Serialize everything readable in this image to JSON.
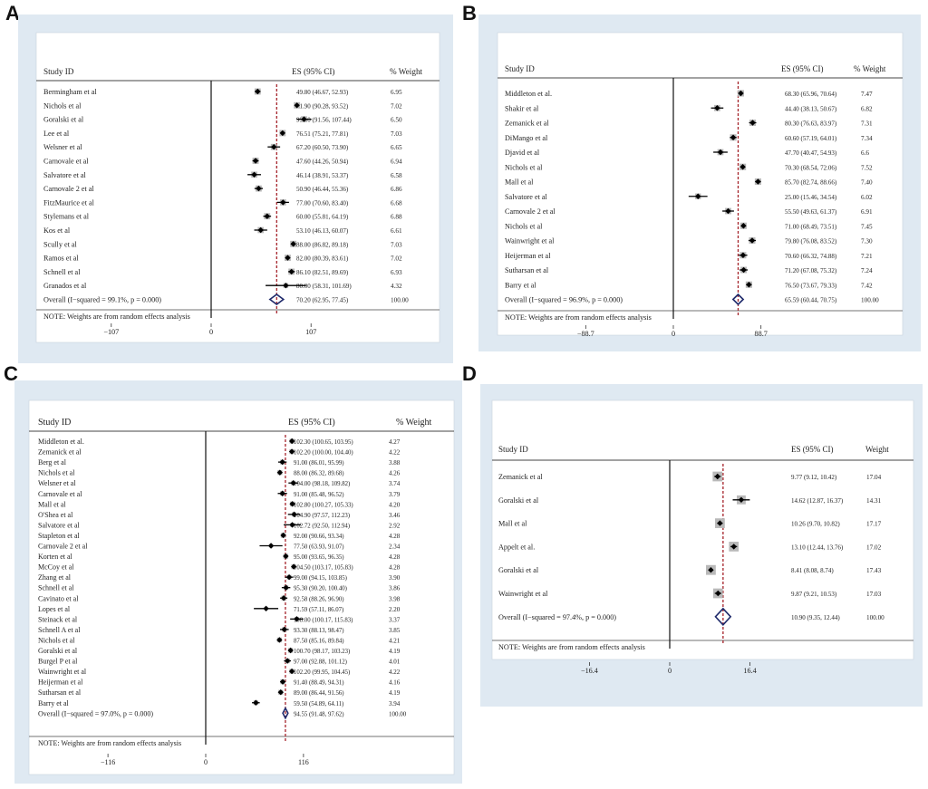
{
  "panels": [
    {
      "letter": "A"
    },
    {
      "letter": "B"
    },
    {
      "letter": "C"
    },
    {
      "letter": "D"
    }
  ],
  "chart_data": [
    {
      "type": "forest",
      "panel": "A",
      "columns": {
        "study": "Study ID",
        "es": "ES (95% CI)",
        "weight": "% Weight"
      },
      "colors": {
        "frame": "#dfe9f2",
        "plot": "#ffffff",
        "ref": "#a5232a",
        "diamond": "#1f2a6b"
      },
      "studies": [
        {
          "name": "Bermingham et al",
          "es": 49.8,
          "lo": 46.67,
          "hi": 52.93,
          "ci": "49.80 (46.67, 52.93)",
          "weight": "6.95"
        },
        {
          "name": "Nichols et al",
          "es": 91.9,
          "lo": 90.28,
          "hi": 93.52,
          "ci": "91.90 (90.28, 93.52)",
          "weight": "7.02"
        },
        {
          "name": "Goralski et al",
          "es": 99.5,
          "lo": 91.56,
          "hi": 107.44,
          "ci": "99.50 (91.56, 107.44)",
          "weight": "6.50"
        },
        {
          "name": "Lee et al",
          "es": 76.51,
          "lo": 75.21,
          "hi": 77.81,
          "ci": "76.51 (75.21, 77.81)",
          "weight": "7.03"
        },
        {
          "name": "Welsner et al",
          "es": 67.2,
          "lo": 60.5,
          "hi": 73.9,
          "ci": "67.20 (60.50, 73.90)",
          "weight": "6.65"
        },
        {
          "name": "Carnovale et al",
          "es": 47.6,
          "lo": 44.26,
          "hi": 50.94,
          "ci": "47.60 (44.26, 50.94)",
          "weight": "6.94"
        },
        {
          "name": "Salvatore et al",
          "es": 46.14,
          "lo": 38.91,
          "hi": 53.37,
          "ci": "46.14 (38.91, 53.37)",
          "weight": "6.58"
        },
        {
          "name": "Carnovale 2 et al",
          "es": 50.9,
          "lo": 46.44,
          "hi": 55.36,
          "ci": "50.90 (46.44, 55.36)",
          "weight": "6.86"
        },
        {
          "name": "FitzMaurice et al",
          "es": 77.0,
          "lo": 70.6,
          "hi": 83.4,
          "ci": "77.00 (70.60, 83.40)",
          "weight": "6.68"
        },
        {
          "name": "Stylemans et al",
          "es": 60.0,
          "lo": 55.81,
          "hi": 64.19,
          "ci": "60.00 (55.81, 64.19)",
          "weight": "6.88"
        },
        {
          "name": "Kos et al",
          "es": 53.1,
          "lo": 46.13,
          "hi": 60.07,
          "ci": "53.10 (46.13, 60.07)",
          "weight": "6.61"
        },
        {
          "name": "Scully et al",
          "es": 88.0,
          "lo": 86.82,
          "hi": 89.18,
          "ci": "88.00 (86.82, 89.18)",
          "weight": "7.03"
        },
        {
          "name": "Ramos et al",
          "es": 82.0,
          "lo": 80.39,
          "hi": 83.61,
          "ci": "82.00 (80.39, 83.61)",
          "weight": "7.02"
        },
        {
          "name": "Schnell et al",
          "es": 86.1,
          "lo": 82.51,
          "hi": 89.69,
          "ci": "86.10 (82.51, 89.69)",
          "weight": "6.93"
        },
        {
          "name": "Granados et al",
          "es": 80.0,
          "lo": 58.31,
          "hi": 101.69,
          "ci": "80.00 (58.31, 101.69)",
          "weight": "4.32"
        }
      ],
      "overall": {
        "label": "Overall  (I−squared = 99.1%, p = 0.000)",
        "es": 70.2,
        "lo": 62.95,
        "hi": 77.45,
        "ci": "70.20 (62.95, 77.45)",
        "weight": "100.00"
      },
      "note": "NOTE: Weights are from random effects analysis",
      "axis": {
        "min": -107,
        "max": 107,
        "ticks": [
          {
            "v": -107,
            "label": "−107"
          },
          {
            "v": 0,
            "label": "0"
          },
          {
            "v": 107,
            "label": "107"
          }
        ]
      }
    },
    {
      "type": "forest",
      "panel": "B",
      "columns": {
        "study": "Study ID",
        "es": "ES (95% CI)",
        "weight": "% Weight"
      },
      "colors": {
        "frame": "#dfe9f2",
        "plot": "#ffffff",
        "ref": "#a5232a",
        "diamond": "#1f2a6b"
      },
      "studies": [
        {
          "name": "Middleton et al.",
          "es": 68.3,
          "lo": 65.96,
          "hi": 70.64,
          "ci": "68.30 (65.96, 70.64)",
          "weight": "7.47"
        },
        {
          "name": "Shakir et al",
          "es": 44.4,
          "lo": 38.13,
          "hi": 50.67,
          "ci": "44.40 (38.13, 50.67)",
          "weight": "6.82"
        },
        {
          "name": "Zemanick et al",
          "es": 80.3,
          "lo": 76.63,
          "hi": 83.97,
          "ci": "80.30 (76.63, 83.97)",
          "weight": "7.31"
        },
        {
          "name": "DiMango et al",
          "es": 60.6,
          "lo": 57.19,
          "hi": 64.01,
          "ci": "60.60 (57.19, 64.01)",
          "weight": "7.34"
        },
        {
          "name": "Djavid et al",
          "es": 47.7,
          "lo": 40.47,
          "hi": 54.93,
          "ci": "47.70 (40.47, 54.93)",
          "weight": "6.6"
        },
        {
          "name": "Nichols et al",
          "es": 70.3,
          "lo": 68.54,
          "hi": 72.06,
          "ci": "70.30 (68.54, 72.06)",
          "weight": "7.52"
        },
        {
          "name": "Mall et al",
          "es": 85.7,
          "lo": 82.74,
          "hi": 88.66,
          "ci": "85.70 (82.74, 88.66)",
          "weight": "7.40"
        },
        {
          "name": "Salvatore et al",
          "es": 25.0,
          "lo": 15.46,
          "hi": 34.54,
          "ci": "25.00 (15.46, 34.54)",
          "weight": "6.02"
        },
        {
          "name": "Carnovale 2 et al",
          "es": 55.5,
          "lo": 49.63,
          "hi": 61.37,
          "ci": "55.50 (49.63, 61.37)",
          "weight": "6.91"
        },
        {
          "name": "Nichols et al",
          "es": 71.0,
          "lo": 68.49,
          "hi": 73.51,
          "ci": "71.00 (68.49, 73.51)",
          "weight": "7.45"
        },
        {
          "name": "Wainwright et al",
          "es": 79.8,
          "lo": 76.08,
          "hi": 83.52,
          "ci": "79.80 (76.08, 83.52)",
          "weight": "7.30"
        },
        {
          "name": "Heijerman et al",
          "es": 70.6,
          "lo": 66.32,
          "hi": 74.88,
          "ci": "70.60 (66.32, 74.88)",
          "weight": "7.21"
        },
        {
          "name": "Sutharsan et al",
          "es": 71.2,
          "lo": 67.08,
          "hi": 75.32,
          "ci": "71.20 (67.08, 75.32)",
          "weight": "7.24"
        },
        {
          "name": "Barry et al",
          "es": 76.5,
          "lo": 73.67,
          "hi": 79.33,
          "ci": "76.50 (73.67, 79.33)",
          "weight": "7.42"
        }
      ],
      "overall": {
        "label": "Overall  (I−squared = 96.9%, p = 0.000)",
        "es": 65.59,
        "lo": 60.44,
        "hi": 70.75,
        "ci": "65.59 (60.44, 70.75)",
        "weight": "100.00"
      },
      "note": "NOTE: Weights are from random effects analysis",
      "axis": {
        "min": -88.7,
        "max": 88.7,
        "ticks": [
          {
            "v": -88.7,
            "label": "−88.7"
          },
          {
            "v": 0,
            "label": "0"
          },
          {
            "v": 88.7,
            "label": "88.7"
          }
        ]
      }
    },
    {
      "type": "forest",
      "panel": "C",
      "columns": {
        "study": "Study ID",
        "es": "ES (95% CI)",
        "weight": "% Weight"
      },
      "colors": {
        "frame": "#dfe9f2",
        "plot": "#ffffff",
        "ref": "#a5232a",
        "diamond": "#1f2a6b"
      },
      "studies": [
        {
          "name": "Middleton et al.",
          "es": 102.3,
          "lo": 100.65,
          "hi": 103.95,
          "ci": "102.30 (100.65, 103.95)",
          "weight": "4.27"
        },
        {
          "name": "Zemanick et al",
          "es": 102.2,
          "lo": 100.0,
          "hi": 104.4,
          "ci": "102.20 (100.00, 104.40)",
          "weight": "4.22"
        },
        {
          "name": "Berg et al",
          "es": 91.0,
          "lo": 86.01,
          "hi": 95.99,
          "ci": "91.00 (86.01, 95.99)",
          "weight": "3.88"
        },
        {
          "name": "Nichols et al",
          "es": 88.0,
          "lo": 86.32,
          "hi": 89.68,
          "ci": "88.00 (86.32, 89.68)",
          "weight": "4.26"
        },
        {
          "name": "Welsner et al",
          "es": 104.0,
          "lo": 98.18,
          "hi": 109.82,
          "ci": "104.00 (98.18, 109.82)",
          "weight": "3.74"
        },
        {
          "name": "Carnovale et al",
          "es": 91.0,
          "lo": 85.48,
          "hi": 96.52,
          "ci": "91.00 (85.48, 96.52)",
          "weight": "3.79"
        },
        {
          "name": "Mall et al",
          "es": 102.8,
          "lo": 100.27,
          "hi": 105.33,
          "ci": "102.80 (100.27, 105.33)",
          "weight": "4.20"
        },
        {
          "name": "O'Shea et al",
          "es": 104.9,
          "lo": 97.57,
          "hi": 112.23,
          "ci": "104.90 (97.57, 112.23)",
          "weight": "3.46"
        },
        {
          "name": "Salvatore et al",
          "es": 102.72,
          "lo": 92.5,
          "hi": 112.94,
          "ci": "102.72 (92.50, 112.94)",
          "weight": "2.92"
        },
        {
          "name": "Stapleton et al",
          "es": 92.0,
          "lo": 90.66,
          "hi": 93.34,
          "ci": "92.00 (90.66, 93.34)",
          "weight": "4.28"
        },
        {
          "name": "Carnovale 2 et al",
          "es": 77.5,
          "lo": 63.93,
          "hi": 91.07,
          "ci": "77.50 (63.93, 91.07)",
          "weight": "2.34"
        },
        {
          "name": "Korten et al",
          "es": 95.0,
          "lo": 93.65,
          "hi": 96.35,
          "ci": "95.00 (93.65, 96.35)",
          "weight": "4.28"
        },
        {
          "name": "McCoy et al",
          "es": 104.5,
          "lo": 103.17,
          "hi": 105.83,
          "ci": "104.50 (103.17, 105.83)",
          "weight": "4.28"
        },
        {
          "name": "Zhang et al",
          "es": 99.0,
          "lo": 94.15,
          "hi": 103.85,
          "ci": "99.00 (94.15, 103.85)",
          "weight": "3.90"
        },
        {
          "name": "Schnell et al",
          "es": 95.3,
          "lo": 90.2,
          "hi": 100.4,
          "ci": "95.30 (90.20, 100.40)",
          "weight": "3.86"
        },
        {
          "name": "Cavinato et al",
          "es": 92.58,
          "lo": 88.26,
          "hi": 96.9,
          "ci": "92.58 (88.26, 96.90)",
          "weight": "3.98"
        },
        {
          "name": "Lopes et al",
          "es": 71.59,
          "lo": 57.11,
          "hi": 86.07,
          "ci": "71.59 (57.11, 86.07)",
          "weight": "2.20"
        },
        {
          "name": "Steinack et al",
          "es": 108.0,
          "lo": 100.17,
          "hi": 115.83,
          "ci": "108.00 (100.17, 115.83)",
          "weight": "3.37"
        },
        {
          "name": "Schnell A et al",
          "es": 93.3,
          "lo": 88.13,
          "hi": 98.47,
          "ci": "93.30 (88.13, 98.47)",
          "weight": "3.85"
        },
        {
          "name": "Nichols et al",
          "es": 87.5,
          "lo": 85.16,
          "hi": 89.84,
          "ci": "87.50 (85.16, 89.84)",
          "weight": "4.21"
        },
        {
          "name": "Goralski et al",
          "es": 100.7,
          "lo": 98.17,
          "hi": 103.23,
          "ci": "100.70 (98.17, 103.23)",
          "weight": "4.19"
        },
        {
          "name": "Burgel P et al",
          "es": 97.0,
          "lo": 92.88,
          "hi": 101.12,
          "ci": "97.00 (92.88, 101.12)",
          "weight": "4.01"
        },
        {
          "name": "Wainwright et al",
          "es": 102.2,
          "lo": 99.95,
          "hi": 104.45,
          "ci": "102.20 (99.95, 104.45)",
          "weight": "4.22"
        },
        {
          "name": "Heijerman et al",
          "es": 91.4,
          "lo": 88.49,
          "hi": 94.31,
          "ci": "91.40 (88.49, 94.31)",
          "weight": "4.16"
        },
        {
          "name": "Sutharsan et al",
          "es": 89.0,
          "lo": 86.44,
          "hi": 91.56,
          "ci": "89.00 (86.44, 91.56)",
          "weight": "4.19"
        },
        {
          "name": "Barry et al",
          "es": 59.5,
          "lo": 54.89,
          "hi": 64.11,
          "ci": "59.50 (54.89, 64.11)",
          "weight": "3.94"
        }
      ],
      "overall": {
        "label": "Overall  (I−squared = 97.0%, p = 0.000)",
        "es": 94.55,
        "lo": 91.48,
        "hi": 97.62,
        "ci": "94.55 (91.48, 97.62)",
        "weight": "100.00"
      },
      "note": "NOTE: Weights are from random effects analysis",
      "axis": {
        "min": -116,
        "max": 116,
        "ticks": [
          {
            "v": -116,
            "label": "−116"
          },
          {
            "v": 0,
            "label": "0"
          },
          {
            "v": 116,
            "label": "116"
          }
        ]
      }
    },
    {
      "type": "forest",
      "panel": "D",
      "columns": {
        "study": "Study ID",
        "es": "ES (95% CI)",
        "weight": "Weight"
      },
      "colors": {
        "frame": "#dfe9f2",
        "plot": "#ffffff",
        "ref": "#a5232a",
        "diamond": "#1f2a6b"
      },
      "studies": [
        {
          "name": "Zemanick et al",
          "es": 9.77,
          "lo": 9.12,
          "hi": 10.42,
          "ci": "9.77 (9.12, 10.42)",
          "weight": "17.04"
        },
        {
          "name": "Goralski et al",
          "es": 14.62,
          "lo": 12.87,
          "hi": 16.37,
          "ci": "14.62 (12.87, 16.37)",
          "weight": "14.31"
        },
        {
          "name": "Mall et al",
          "es": 10.26,
          "lo": 9.7,
          "hi": 10.82,
          "ci": "10.26 (9.70, 10.82)",
          "weight": "17.17"
        },
        {
          "name": "Appelt et al.",
          "es": 13.1,
          "lo": 12.44,
          "hi": 13.76,
          "ci": "13.10 (12.44, 13.76)",
          "weight": "17.02"
        },
        {
          "name": "Goralski et al",
          "es": 8.41,
          "lo": 8.08,
          "hi": 8.74,
          "ci": "8.41 (8.08, 8.74)",
          "weight": "17.43"
        },
        {
          "name": "Wainwright et al",
          "es": 9.87,
          "lo": 9.21,
          "hi": 10.53,
          "ci": "9.87 (9.21, 10.53)",
          "weight": "17.03"
        }
      ],
      "overall": {
        "label": "Overall  (I−squared = 97.4%, p = 0.000)",
        "es": 10.9,
        "lo": 9.35,
        "hi": 12.44,
        "ci": "10.90 (9.35, 12.44)",
        "weight": "100.00"
      },
      "note": "NOTE: Weights are from random effects analysis",
      "axis": {
        "min": -16.4,
        "max": 16.4,
        "ticks": [
          {
            "v": -16.4,
            "label": "−16.4"
          },
          {
            "v": 0,
            "label": "0"
          },
          {
            "v": 16.4,
            "label": "16.4"
          }
        ]
      }
    }
  ]
}
